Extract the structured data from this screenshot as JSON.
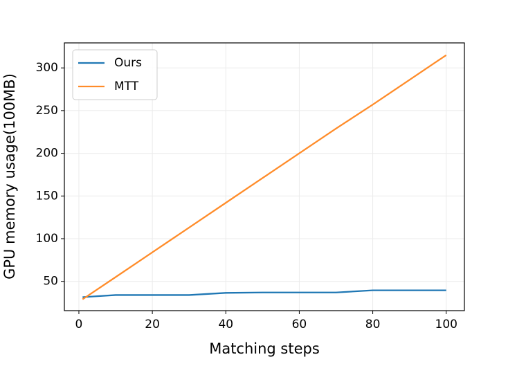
{
  "chart_data": {
    "type": "line",
    "xlabel": "Matching steps",
    "ylabel": "GPU memory usage(100MB)",
    "x": [
      1,
      10,
      20,
      30,
      40,
      50,
      60,
      70,
      80,
      90,
      100
    ],
    "series": [
      {
        "name": "Ours",
        "color": "#1f77b4",
        "values": [
          31.5,
          34,
          34,
          34,
          36.5,
          37,
          37,
          37,
          39.5,
          39.5,
          39.5
        ]
      },
      {
        "name": "MTT",
        "color": "#ff8c2a",
        "values": [
          29,
          55,
          84,
          113,
          142,
          171,
          200,
          229,
          257,
          286,
          315
        ]
      }
    ],
    "xlim": [
      -3.95,
      104.95
    ],
    "ylim": [
      15.7,
      329.3
    ],
    "xticks": [
      0,
      20,
      40,
      60,
      80,
      100
    ],
    "yticks": [
      50,
      100,
      150,
      200,
      250,
      300
    ],
    "grid": true,
    "legend": "upper-left"
  }
}
